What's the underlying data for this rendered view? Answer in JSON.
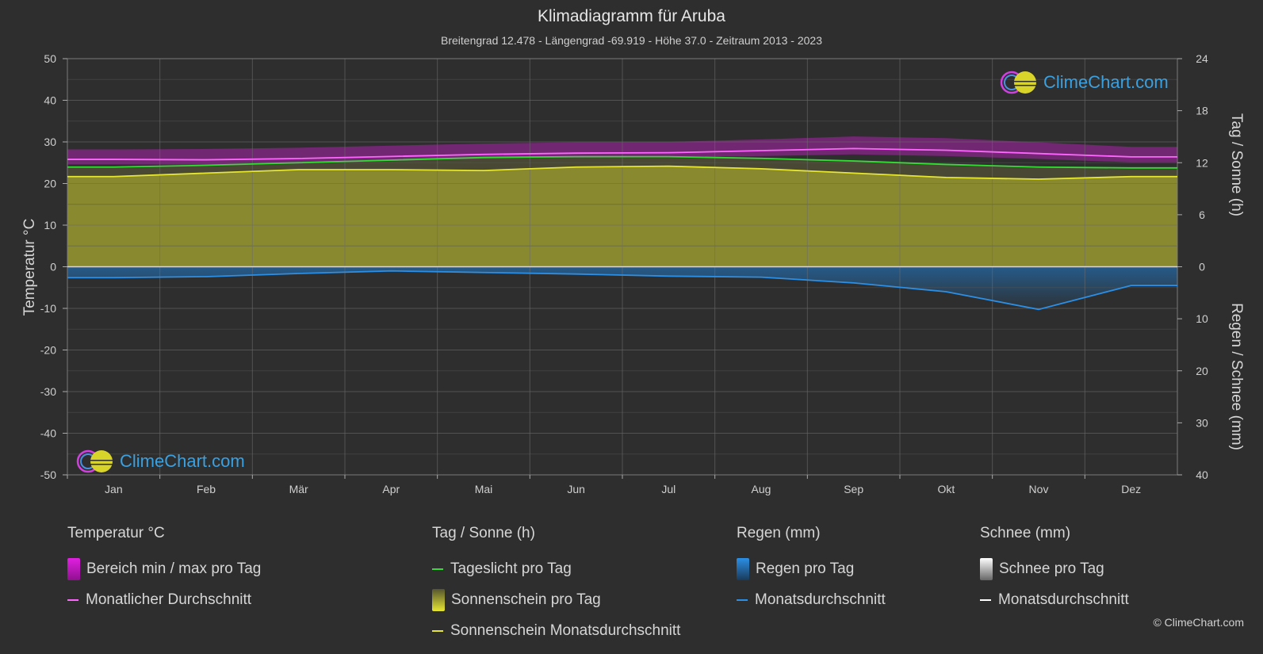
{
  "header": {
    "title": "Klimadiagramm für Aruba",
    "subtitle": "Breitengrad 12.478 - Längengrad -69.919 - Höhe 37.0 - Zeitraum 2013 - 2023"
  },
  "logo_text": "ClimeChart.com",
  "copyright": "© ClimeChart.com",
  "colors": {
    "background": "#2e2e2e",
    "temp_range": "#c41fc4",
    "temp_avg": "#ff66ff",
    "daylight": "#33dd33",
    "sunshine_fill": "#a8a832",
    "sunshine_avg": "#e6e632",
    "rain": "#1f7fd4",
    "rain_avg": "#2b8fe6",
    "snow_avg": "#ffffff"
  },
  "legend": {
    "temperature": {
      "heading": "Temperatur °C",
      "range": "Bereich min / max pro Tag",
      "avg": "Monatlicher Durchschnitt"
    },
    "sun": {
      "heading": "Tag / Sonne (h)",
      "daylight": "Tageslicht pro Tag",
      "sunshine": "Sonnenschein pro Tag",
      "sunshine_avg": "Sonnenschein Monatsdurchschnitt"
    },
    "rain": {
      "heading": "Regen (mm)",
      "per_day": "Regen pro Tag",
      "avg": "Monatsdurchschnitt"
    },
    "snow": {
      "heading": "Schnee (mm)",
      "per_day": "Schnee pro Tag",
      "avg": "Monatsdurchschnitt"
    }
  },
  "chart_data": {
    "type": "line",
    "categories": [
      "Jan",
      "Feb",
      "Mär",
      "Apr",
      "Mai",
      "Jun",
      "Jul",
      "Aug",
      "Sep",
      "Okt",
      "Nov",
      "Dez"
    ],
    "axes": {
      "left": {
        "label": "Temperatur °C",
        "min": -50,
        "max": 50,
        "ticks": [
          50,
          40,
          30,
          20,
          10,
          0,
          -10,
          -20,
          -30,
          -40,
          -50
        ]
      },
      "right_top": {
        "label": "Tag / Sonne (h)",
        "min": 0,
        "max": 24,
        "ticks": [
          24,
          18,
          12,
          6,
          0
        ]
      },
      "right_bottom": {
        "label": "Regen / Schnee (mm)",
        "min": 0,
        "max": 40,
        "ticks": [
          0,
          10,
          20,
          30,
          40
        ]
      }
    },
    "grid": true,
    "series": [
      {
        "name": "Monatlicher Durchschnitt",
        "axis": "temperature",
        "values": [
          25.8,
          25.7,
          26.0,
          26.5,
          27.0,
          27.3,
          27.4,
          27.9,
          28.4,
          28.0,
          27.2,
          26.4
        ]
      },
      {
        "name": "Bereich min / max pro Tag (max)",
        "axis": "temperature",
        "values": [
          28.2,
          28.3,
          28.6,
          29.1,
          29.6,
          29.9,
          30.0,
          30.6,
          31.3,
          30.9,
          29.9,
          28.8
        ]
      },
      {
        "name": "Bereich min / max pro Tag (min)",
        "axis": "temperature",
        "values": [
          24.6,
          24.5,
          24.8,
          25.4,
          26.0,
          26.2,
          26.3,
          26.6,
          27.0,
          26.6,
          25.9,
          25.1
        ]
      },
      {
        "name": "Tageslicht pro Tag",
        "axis": "sun",
        "values": [
          11.5,
          11.7,
          12.0,
          12.3,
          12.6,
          12.7,
          12.7,
          12.5,
          12.2,
          11.8,
          11.5,
          11.4
        ]
      },
      {
        "name": "Sonnenschein Monatsdurchschnitt",
        "axis": "sun",
        "values": [
          10.4,
          10.8,
          11.2,
          11.2,
          11.1,
          11.5,
          11.6,
          11.3,
          10.8,
          10.3,
          10.1,
          10.4
        ]
      },
      {
        "name": "Monatsdurchschnitt (Regen)",
        "axis": "rain",
        "values": [
          2.1,
          1.9,
          1.3,
          0.8,
          1.1,
          1.4,
          1.8,
          2.0,
          3.1,
          4.8,
          8.2,
          3.6
        ]
      },
      {
        "name": "Monatsdurchschnitt (Schnee)",
        "axis": "rain",
        "values": [
          0,
          0,
          0,
          0,
          0,
          0,
          0,
          0,
          0,
          0,
          0,
          0
        ]
      }
    ]
  }
}
